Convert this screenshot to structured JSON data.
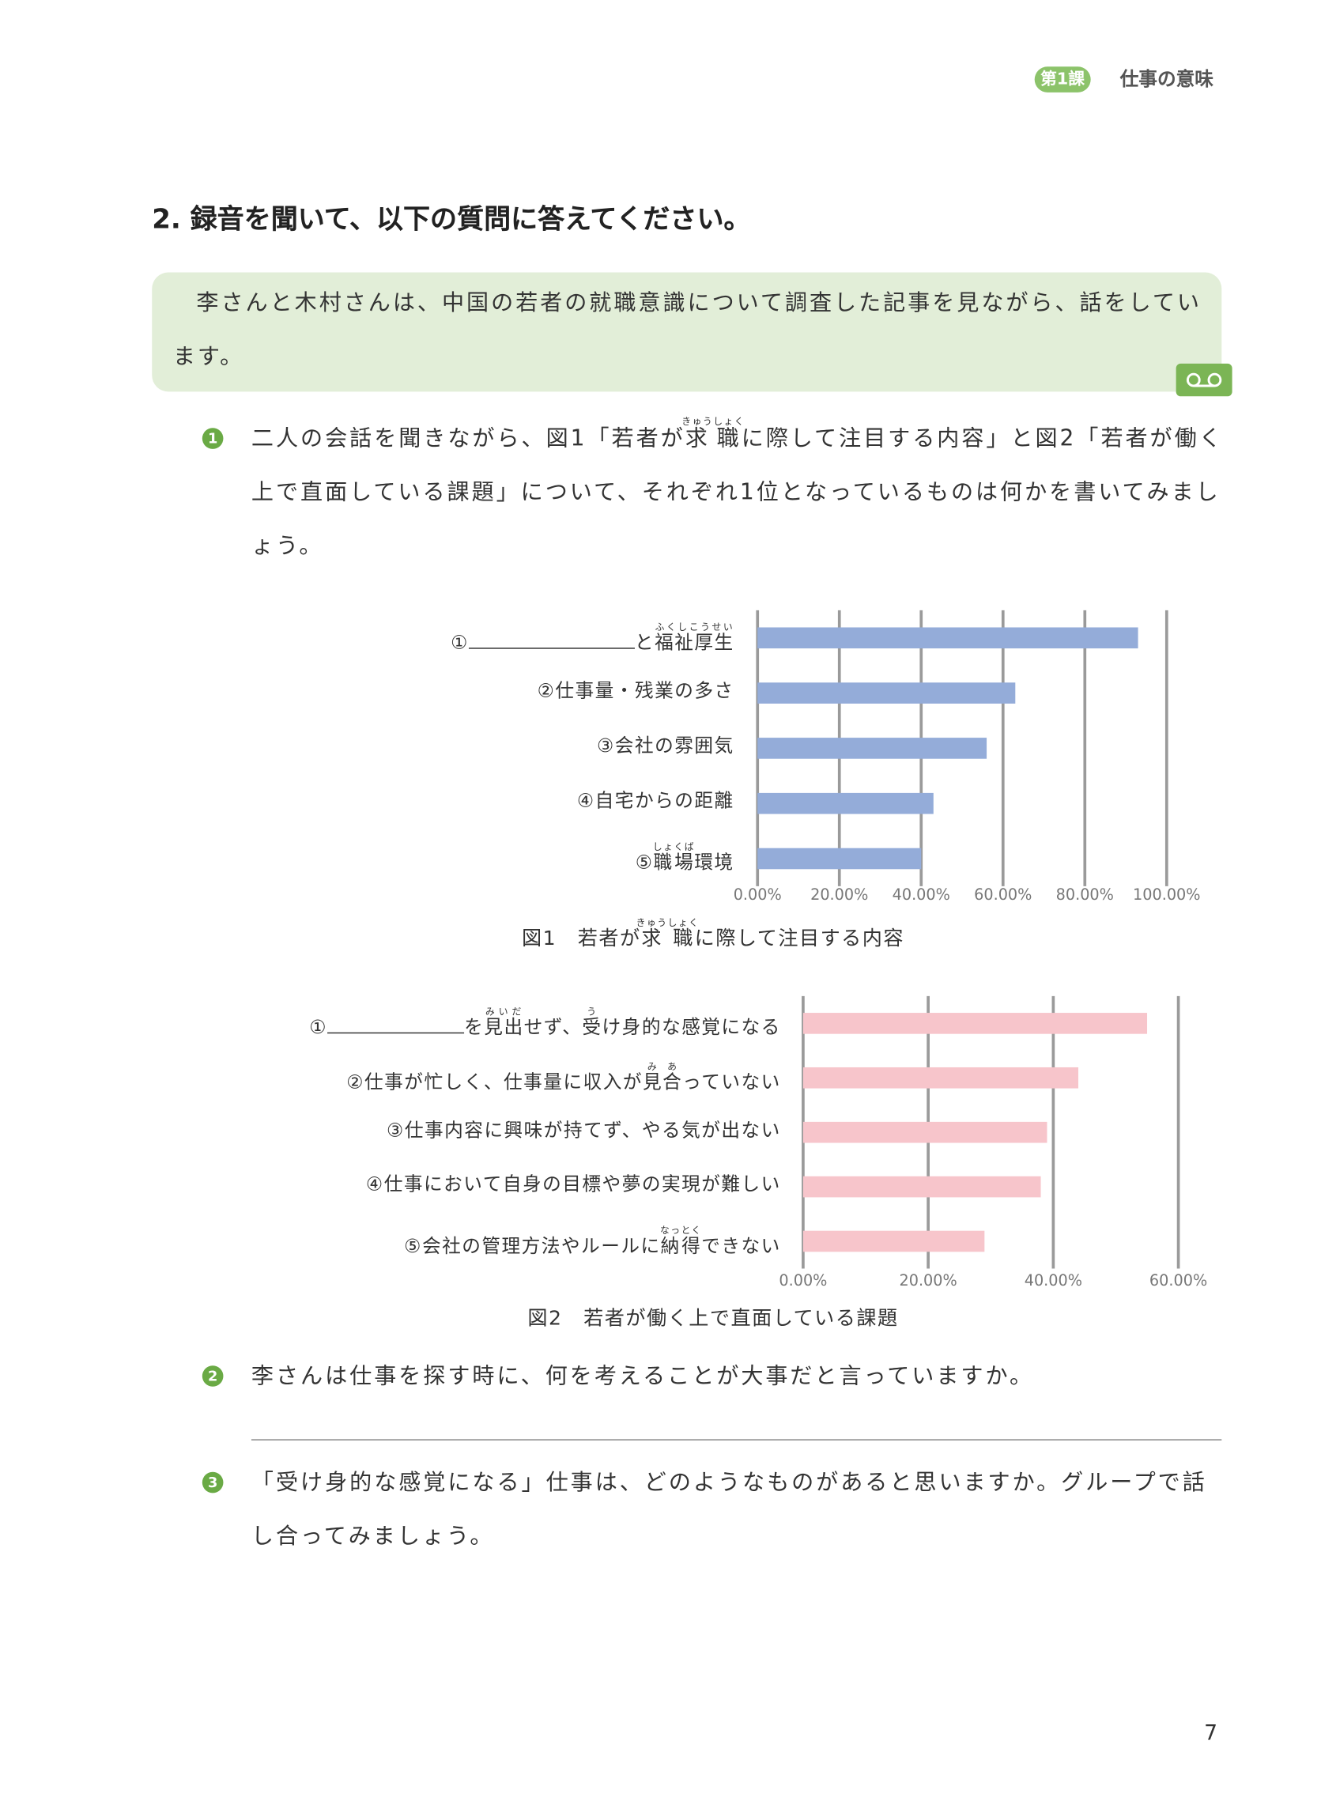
{
  "header": {
    "badge": "第1課",
    "title": "仕事の意味"
  },
  "section_title": "2. 録音を聞いて、以下の質問に答えてください。",
  "intro": "李さんと木村さんは、中国の若者の就職意識について調査した記事を見ながら、話をしています。",
  "questions": [
    {
      "number": "1",
      "text": [
        "二人の会話を聞きながら、図1「若者が",
        {
          "base": "求職",
          "ruby": "きゅうしょく"
        },
        "に際して注目する内容」と図2「若者が働く上で直面している課題」について、それぞれ1位となっているものは何かを書いてみましょう。"
      ]
    },
    {
      "number": "2",
      "text": [
        "李さんは仕事を探す時に、何を考えることが大事だと言っていますか。"
      ]
    },
    {
      "number": "3",
      "text": [
        "「受け身的な感覚になる」仕事は、どのようなものがあると思いますか。グループで話し合ってみましょう。"
      ]
    }
  ],
  "chart_data": [
    {
      "type": "bar",
      "orientation": "horizontal",
      "categories": [
        [
          "①",
          "と",
          {
            "base": "福祉厚生",
            "ruby": "ふくしこうせい"
          }
        ],
        "②仕事量・残業の多さ",
        "③会社の雰囲気",
        "④自宅からの距離",
        [
          "⑤",
          {
            "base": "職場",
            "ruby": "しょくば"
          },
          "環境"
        ]
      ],
      "values": [
        93,
        63,
        56,
        43,
        40
      ],
      "color": "#94acd9",
      "xlim": [
        0,
        100
      ],
      "xticks": [
        {
          "value": 0,
          "label": "0.00%"
        },
        {
          "value": 20,
          "label": "20.00%"
        },
        {
          "value": 40,
          "label": "40.00%"
        },
        {
          "value": 60,
          "label": "60.00%"
        },
        {
          "value": 80,
          "label": "80.00%"
        },
        {
          "value": 100,
          "label": "100.00%"
        }
      ],
      "grid": true,
      "caption": [
        "図1　若者が",
        {
          "base": "求職",
          "ruby": "きゅうしょく"
        },
        "に際して注目する内容"
      ]
    },
    {
      "type": "bar",
      "orientation": "horizontal",
      "categories": [
        [
          "①",
          "を",
          {
            "base": "見出",
            "ruby": "みいだ"
          },
          "せず、",
          {
            "base": "受",
            "ruby": "う"
          },
          "け身的な感覚になる"
        ],
        [
          "②仕事が忙しく、仕事量に収入が",
          {
            "base": "見合",
            "ruby": "みあ"
          },
          "っていない"
        ],
        "③仕事内容に興味が持てず、やる気が出ない",
        "④仕事において自身の目標や夢の実現が難しい",
        [
          "⑤会社の管理方法やルールに",
          {
            "base": "納得",
            "ruby": "なっとく"
          },
          "できない"
        ]
      ],
      "values": [
        55,
        44,
        39,
        38,
        29
      ],
      "color": "#f7c5cb",
      "xlim": [
        0,
        60
      ],
      "xticks": [
        {
          "value": 0,
          "label": "0.00%"
        },
        {
          "value": 20,
          "label": "20.00%"
        },
        {
          "value": 40,
          "label": "40.00%"
        },
        {
          "value": 60,
          "label": "60.00%"
        }
      ],
      "grid": true,
      "caption": [
        "図2　若者が働く上で直面している課題"
      ]
    }
  ],
  "page_number": "7"
}
